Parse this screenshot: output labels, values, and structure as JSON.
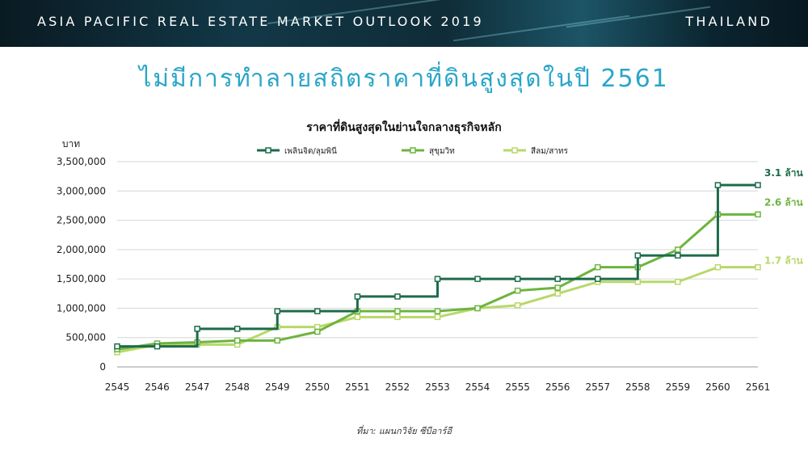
{
  "header": {
    "left_title": "ASIA PACIFIC REAL ESTATE MARKET OUTLOOK 2019",
    "right_title": "THAILAND"
  },
  "headline": "ไม่มีการทำลายสถิตราคาที่ดินสูงสุดในปี 2561",
  "source_note": "ที่มา: แผนกวิจัย ซีบีอาร์อี",
  "colors": {
    "banner": "#123847",
    "headline": "#2aa6c8",
    "series_dark": "#1d6b4a",
    "series_mid": "#6db43e",
    "series_light": "#b8d86a"
  },
  "chart_data": {
    "type": "line",
    "title": "ราคาที่ดินสูงสุดในย่านใจกลางธุรกิจหลัก",
    "ylabel": "บาท",
    "xlabel": "",
    "ylim": [
      0,
      3500000
    ],
    "y_ticks": [
      "0",
      "500,000",
      "1,000,000",
      "1,500,000",
      "2,000,000",
      "2,500,000",
      "3,000,000",
      "3,500,000"
    ],
    "grid": true,
    "legend_position": "top",
    "categories": [
      "2545",
      "2546",
      "2547",
      "2548",
      "2549",
      "2550",
      "2551",
      "2552",
      "2553",
      "2554",
      "2555",
      "2556",
      "2557",
      "2558",
      "2559",
      "2560",
      "2561"
    ],
    "series": [
      {
        "name": "เพลินจิต/ลุมพินี",
        "color": "#1d6b4a",
        "step": true,
        "end_label": "3.1 ล้าน",
        "values": [
          350000,
          350000,
          650000,
          650000,
          950000,
          950000,
          1200000,
          1200000,
          1500000,
          1500000,
          1500000,
          1500000,
          1500000,
          1900000,
          1900000,
          3100000,
          3100000
        ]
      },
      {
        "name": "สุขุมวิท",
        "color": "#6db43e",
        "step": false,
        "end_label": "2.6 ล้าน",
        "values": [
          300000,
          400000,
          420000,
          450000,
          450000,
          600000,
          950000,
          950000,
          950000,
          1000000,
          1300000,
          1350000,
          1700000,
          1700000,
          2000000,
          2600000,
          2600000
        ]
      },
      {
        "name": "สีลม/สาทร",
        "color": "#b8d86a",
        "step": false,
        "end_label": "1.7 ล้าน",
        "values": [
          250000,
          380000,
          380000,
          380000,
          680000,
          680000,
          850000,
          850000,
          850000,
          1000000,
          1050000,
          1250000,
          1450000,
          1450000,
          1450000,
          1700000,
          1700000
        ]
      }
    ]
  }
}
